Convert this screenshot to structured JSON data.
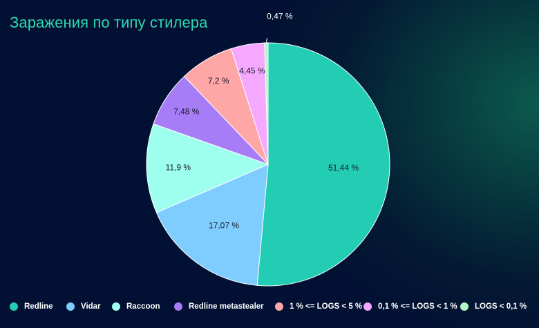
{
  "chart_data": {
    "type": "pie",
    "title": "Заражения по типу стилера",
    "legend_position": "bottom",
    "slices": [
      {
        "name": "Redline",
        "value": 51.44,
        "label": "51,44 %",
        "color": "#22cdb3"
      },
      {
        "name": "Vidar",
        "value": 17.07,
        "label": "17,07 %",
        "color": "#7fcdff"
      },
      {
        "name": "Raccoon",
        "value": 11.9,
        "label": "11,9 %",
        "color": "#9effef"
      },
      {
        "name": "Redline metastealer",
        "value": 7.48,
        "label": "7,48 %",
        "color": "#a77cf7"
      },
      {
        "name": "1 % <= LOGS < 5 %",
        "value": 7.2,
        "label": "7,2 %",
        "color": "#ffa6a6"
      },
      {
        "name": "0,1 % <= LOGS < 1 %",
        "value": 4.45,
        "label": "4,45 %",
        "color": "#f5a8ff"
      },
      {
        "name": "LOGS < 0,1 %",
        "value": 0.47,
        "label": "0,47 %",
        "color": "#b4f7c6"
      }
    ]
  }
}
